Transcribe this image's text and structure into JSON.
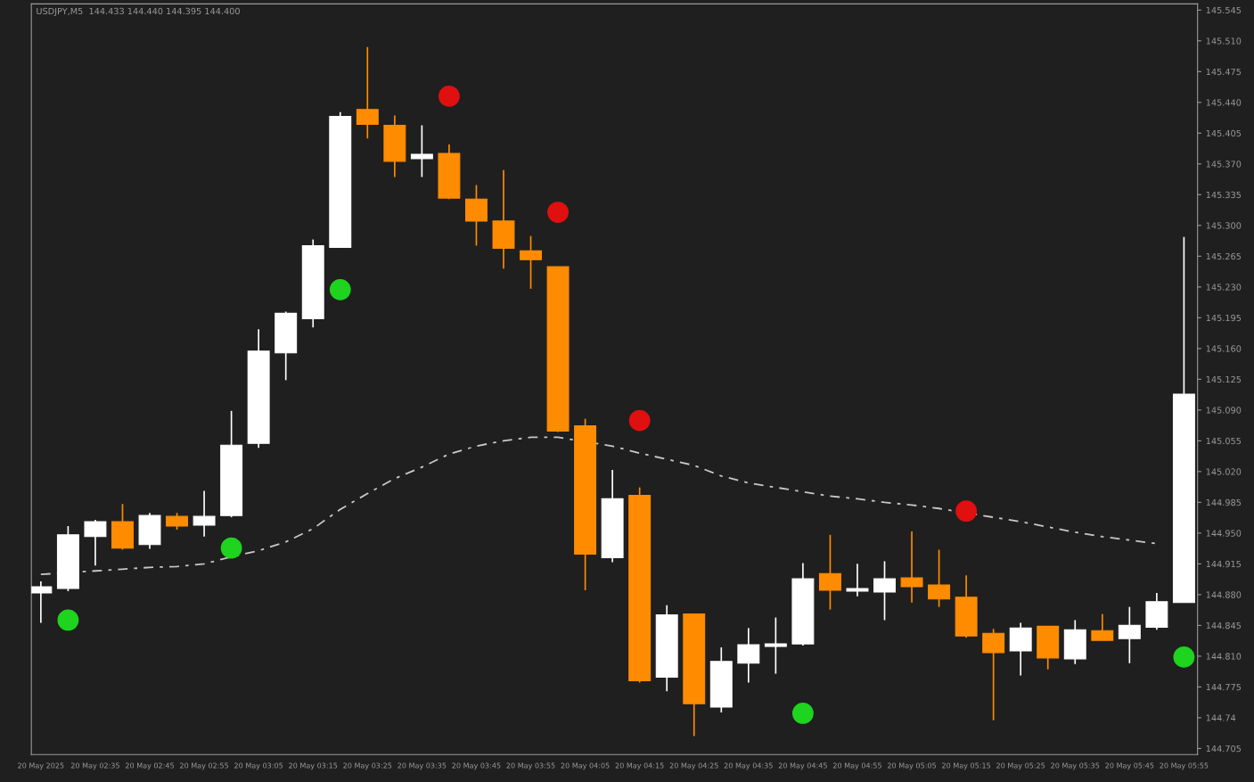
{
  "chart_data": {
    "type": "candlestick",
    "annotations": [
      "USDJPY,M5  144.433 144.440 144.395 144.400"
    ],
    "categories": [
      "20 May 2025",
      null,
      "20 May 02:35",
      null,
      "20 May 02:45",
      null,
      "20 May 02:55",
      null,
      "20 May 03:05",
      null,
      "20 May 03:15",
      null,
      "20 May 03:25",
      null,
      "20 May 03:35",
      null,
      "20 May 03:45",
      null,
      "20 May 03:55",
      null,
      "20 May 04:05",
      null,
      "20 May 04:15",
      null,
      "20 May 04:25",
      null,
      "20 May 04:35",
      null,
      "20 May 04:45",
      null,
      "20 May 04:55",
      null,
      "20 May 05:05",
      null,
      "20 May 05:15",
      null,
      "20 May 05:25",
      null,
      "20 May 05:35",
      null,
      "20 May 05:45",
      null,
      "20 May 05:55"
    ],
    "ohlc": [
      [
        144.882,
        144.895,
        144.848,
        144.889
      ],
      [
        144.887,
        144.958,
        144.884,
        144.948
      ],
      [
        144.946,
        144.965,
        144.913,
        144.963
      ],
      [
        144.963,
        144.983,
        144.931,
        144.933
      ],
      [
        144.937,
        144.973,
        144.932,
        144.97
      ],
      [
        144.969,
        144.973,
        144.954,
        144.958
      ],
      [
        144.959,
        144.998,
        144.946,
        144.969
      ],
      [
        144.97,
        145.089,
        144.968,
        145.05
      ],
      [
        145.052,
        145.182,
        145.047,
        145.157
      ],
      [
        145.155,
        145.202,
        145.124,
        145.2
      ],
      [
        145.194,
        145.284,
        145.184,
        145.277
      ],
      [
        145.275,
        145.429,
        145.275,
        145.424
      ],
      [
        145.432,
        145.503,
        145.399,
        145.415
      ],
      [
        145.414,
        145.425,
        145.355,
        145.373
      ],
      [
        145.376,
        145.414,
        145.355,
        145.381
      ],
      [
        145.382,
        145.392,
        145.33,
        145.331
      ],
      [
        145.33,
        145.346,
        145.277,
        145.305
      ],
      [
        145.305,
        145.363,
        145.251,
        145.274
      ],
      [
        145.271,
        145.288,
        145.228,
        145.261
      ],
      [
        145.253,
        145.253,
        145.065,
        145.066
      ],
      [
        145.072,
        145.08,
        144.885,
        144.926
      ],
      [
        144.922,
        145.022,
        144.917,
        144.989
      ],
      [
        144.993,
        145.002,
        144.78,
        144.782
      ],
      [
        144.786,
        144.868,
        144.77,
        144.857
      ],
      [
        144.858,
        144.858,
        144.719,
        144.756
      ],
      [
        144.752,
        144.82,
        144.746,
        144.804
      ],
      [
        144.802,
        144.842,
        144.78,
        144.823
      ],
      [
        144.821,
        144.854,
        144.79,
        144.824
      ],
      [
        144.824,
        144.916,
        144.822,
        144.898
      ],
      [
        144.904,
        144.948,
        144.863,
        144.885
      ],
      [
        144.884,
        144.915,
        144.878,
        144.887
      ],
      [
        144.883,
        144.918,
        144.851,
        144.898
      ],
      [
        144.899,
        144.952,
        144.871,
        144.889
      ],
      [
        144.891,
        144.931,
        144.866,
        144.875
      ],
      [
        144.877,
        144.902,
        144.831,
        144.833
      ],
      [
        144.836,
        144.841,
        144.737,
        144.814
      ],
      [
        144.816,
        144.848,
        144.788,
        144.842
      ],
      [
        144.844,
        144.844,
        144.795,
        144.808
      ],
      [
        144.807,
        144.851,
        144.801,
        144.84
      ],
      [
        144.839,
        144.858,
        144.828,
        144.828
      ],
      [
        144.83,
        144.866,
        144.802,
        144.845
      ],
      [
        144.843,
        144.882,
        144.84,
        144.872
      ],
      [
        144.871,
        145.287,
        144.871,
        145.108
      ]
    ],
    "colors": [
      "#ffffff",
      "#ffffff",
      "#ffffff",
      "#ff8c00",
      "#ffffff",
      "#ff8c00",
      "#ffffff",
      "#ffffff",
      "#ffffff",
      "#ffffff",
      "#ffffff",
      "#ffffff",
      "#ff8c00",
      "#ff8c00",
      "#ffffff",
      "#ff8c00",
      "#ff8c00",
      "#ff8c00",
      "#ff8c00",
      "#ff8c00",
      "#ff8c00",
      "#ffffff",
      "#ff8c00",
      "#ffffff",
      "#ff8c00",
      "#ffffff",
      "#ffffff",
      "#ffffff",
      "#ffffff",
      "#ff8c00",
      "#ffffff",
      "#ffffff",
      "#ff8c00",
      "#ff8c00",
      "#ff8c00",
      "#ff8c00",
      "#ffffff",
      "#ff8c00",
      "#ffffff",
      "#ff8c00",
      "#ffffff",
      "#ffffff",
      "#ffffff"
    ],
    "series": [
      {
        "type": "line",
        "color": "#c8c8c8",
        "line_style": "dashed",
        "marker": "none",
        "values": [
          144.903,
          null,
          144.907,
          144.909,
          144.911,
          144.912,
          144.915,
          144.923,
          144.93,
          144.94,
          144.955,
          144.977,
          144.995,
          145.012,
          145.025,
          145.04,
          145.049,
          145.055,
          145.059,
          145.059,
          null,
          145.049,
          145.041,
          145.034,
          145.027,
          145.015,
          145.007,
          145.002,
          144.997,
          144.992,
          144.989,
          144.985,
          144.982,
          144.978,
          null,
          144.968,
          144.963,
          144.957,
          144.951,
          144.946,
          144.942,
          144.938,
          null
        ]
      },
      {
        "type": "scatter",
        "color": "#1ed41e",
        "marker": "circle",
        "values": [
          null,
          144.851,
          null,
          null,
          null,
          null,
          null,
          144.933,
          null,
          null,
          null,
          145.227,
          null,
          null,
          null,
          null,
          null,
          null,
          null,
          null,
          null,
          null,
          null,
          null,
          null,
          null,
          null,
          null,
          144.745,
          null,
          null,
          null,
          null,
          null,
          null,
          null,
          null,
          null,
          null,
          null,
          null,
          null,
          144.809
        ]
      },
      {
        "type": "scatter",
        "color": "#e01010",
        "marker": "circle",
        "values": [
          null,
          null,
          null,
          null,
          null,
          null,
          null,
          null,
          null,
          null,
          null,
          null,
          null,
          null,
          null,
          145.447,
          null,
          null,
          null,
          145.315,
          null,
          null,
          145.078,
          null,
          null,
          null,
          null,
          null,
          null,
          null,
          null,
          null,
          null,
          null,
          144.975,
          null,
          null,
          null,
          null,
          null,
          null,
          null,
          null
        ]
      }
    ],
    "ylim": [
      144.698,
      145.552
    ],
    "yticks": [
      144.705,
      144.74,
      144.775,
      {
        "value": 144.81,
        "label": "144.810"
      },
      144.845,
      {
        "value": 144.88,
        "label": "144.880"
      },
      144.915,
      {
        "value": 144.95,
        "label": "144.950"
      },
      144.985,
      {
        "value": 145.02,
        "label": "145.020"
      },
      145.055,
      {
        "value": 145.09,
        "label": "145.090"
      },
      145.125,
      {
        "value": 145.16,
        "label": "145.160"
      },
      145.195,
      {
        "value": 145.23,
        "label": "145.230"
      },
      145.265,
      {
        "value": 145.3,
        "label": "145.300"
      },
      145.335,
      {
        "value": 145.37,
        "label": "145.370"
      },
      145.405,
      {
        "value": 145.44,
        "label": "145.440"
      },
      145.475,
      {
        "value": 145.51,
        "label": "145.510"
      },
      145.545
    ],
    "grid": false,
    "legend": false
  }
}
